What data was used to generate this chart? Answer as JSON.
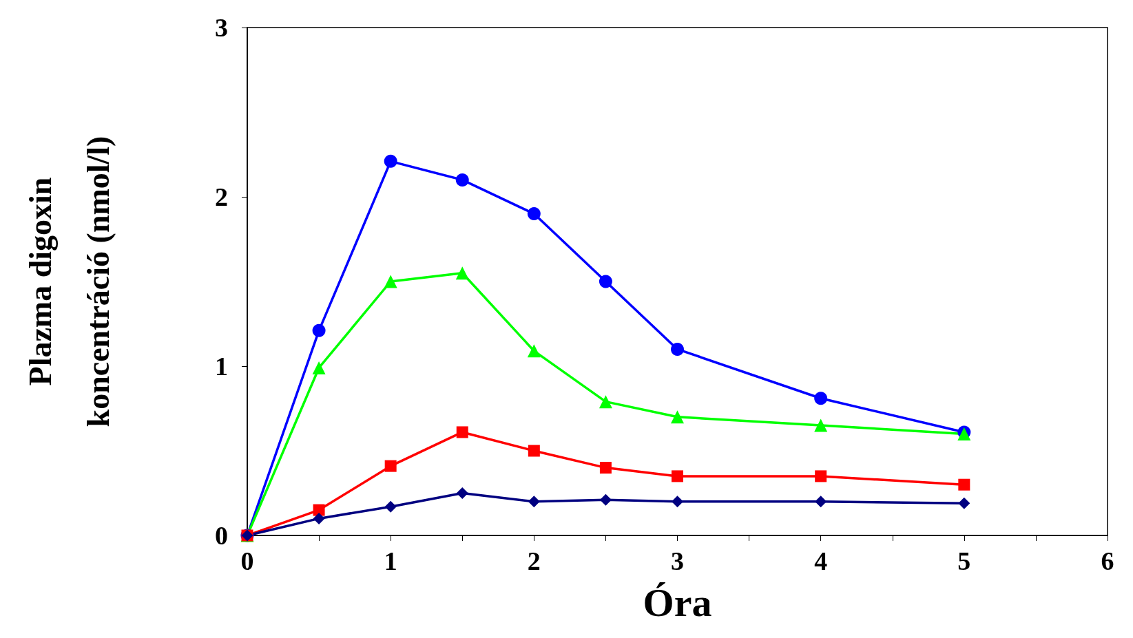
{
  "chart_data": {
    "type": "line",
    "xlabel": "Óra",
    "ylabel": "Plazma digoxin\nkoncentráció (nmol/l)",
    "x": [
      0,
      0.5,
      1,
      1.5,
      2,
      2.5,
      3,
      4,
      5
    ],
    "series": [
      {
        "color": "#0000ff",
        "marker": "circle",
        "values": [
          0,
          1.21,
          2.21,
          2.1,
          1.9,
          1.5,
          1.1,
          0.81,
          0.61
        ]
      },
      {
        "color": "#00ff00",
        "marker": "triangle",
        "values": [
          0,
          0.99,
          1.5,
          1.55,
          1.09,
          0.79,
          0.7,
          0.65,
          0.6
        ]
      },
      {
        "color": "#ff0000",
        "marker": "square",
        "values": [
          0,
          0.15,
          0.41,
          0.61,
          0.5,
          0.4,
          0.35,
          0.35,
          0.3
        ]
      },
      {
        "color": "#000080",
        "marker": "diamond",
        "values": [
          0,
          0.1,
          0.17,
          0.25,
          0.2,
          0.21,
          0.2,
          0.2,
          0.19
        ]
      }
    ],
    "xlim": [
      0,
      6
    ],
    "xticks": [
      0,
      {
        "value": 0.5,
        "label": null
      },
      1,
      {
        "value": 1.5,
        "label": null
      },
      2,
      {
        "value": 2.5,
        "label": null
      },
      3,
      {
        "value": 3.5,
        "label": null
      },
      4,
      {
        "value": 4.5,
        "label": null
      },
      5,
      {
        "value": 5.5,
        "label": null
      },
      6
    ],
    "ylim": [
      0,
      3
    ],
    "yticks": [
      0,
      1,
      2,
      3
    ],
    "grid": false,
    "line_style": "solid"
  }
}
